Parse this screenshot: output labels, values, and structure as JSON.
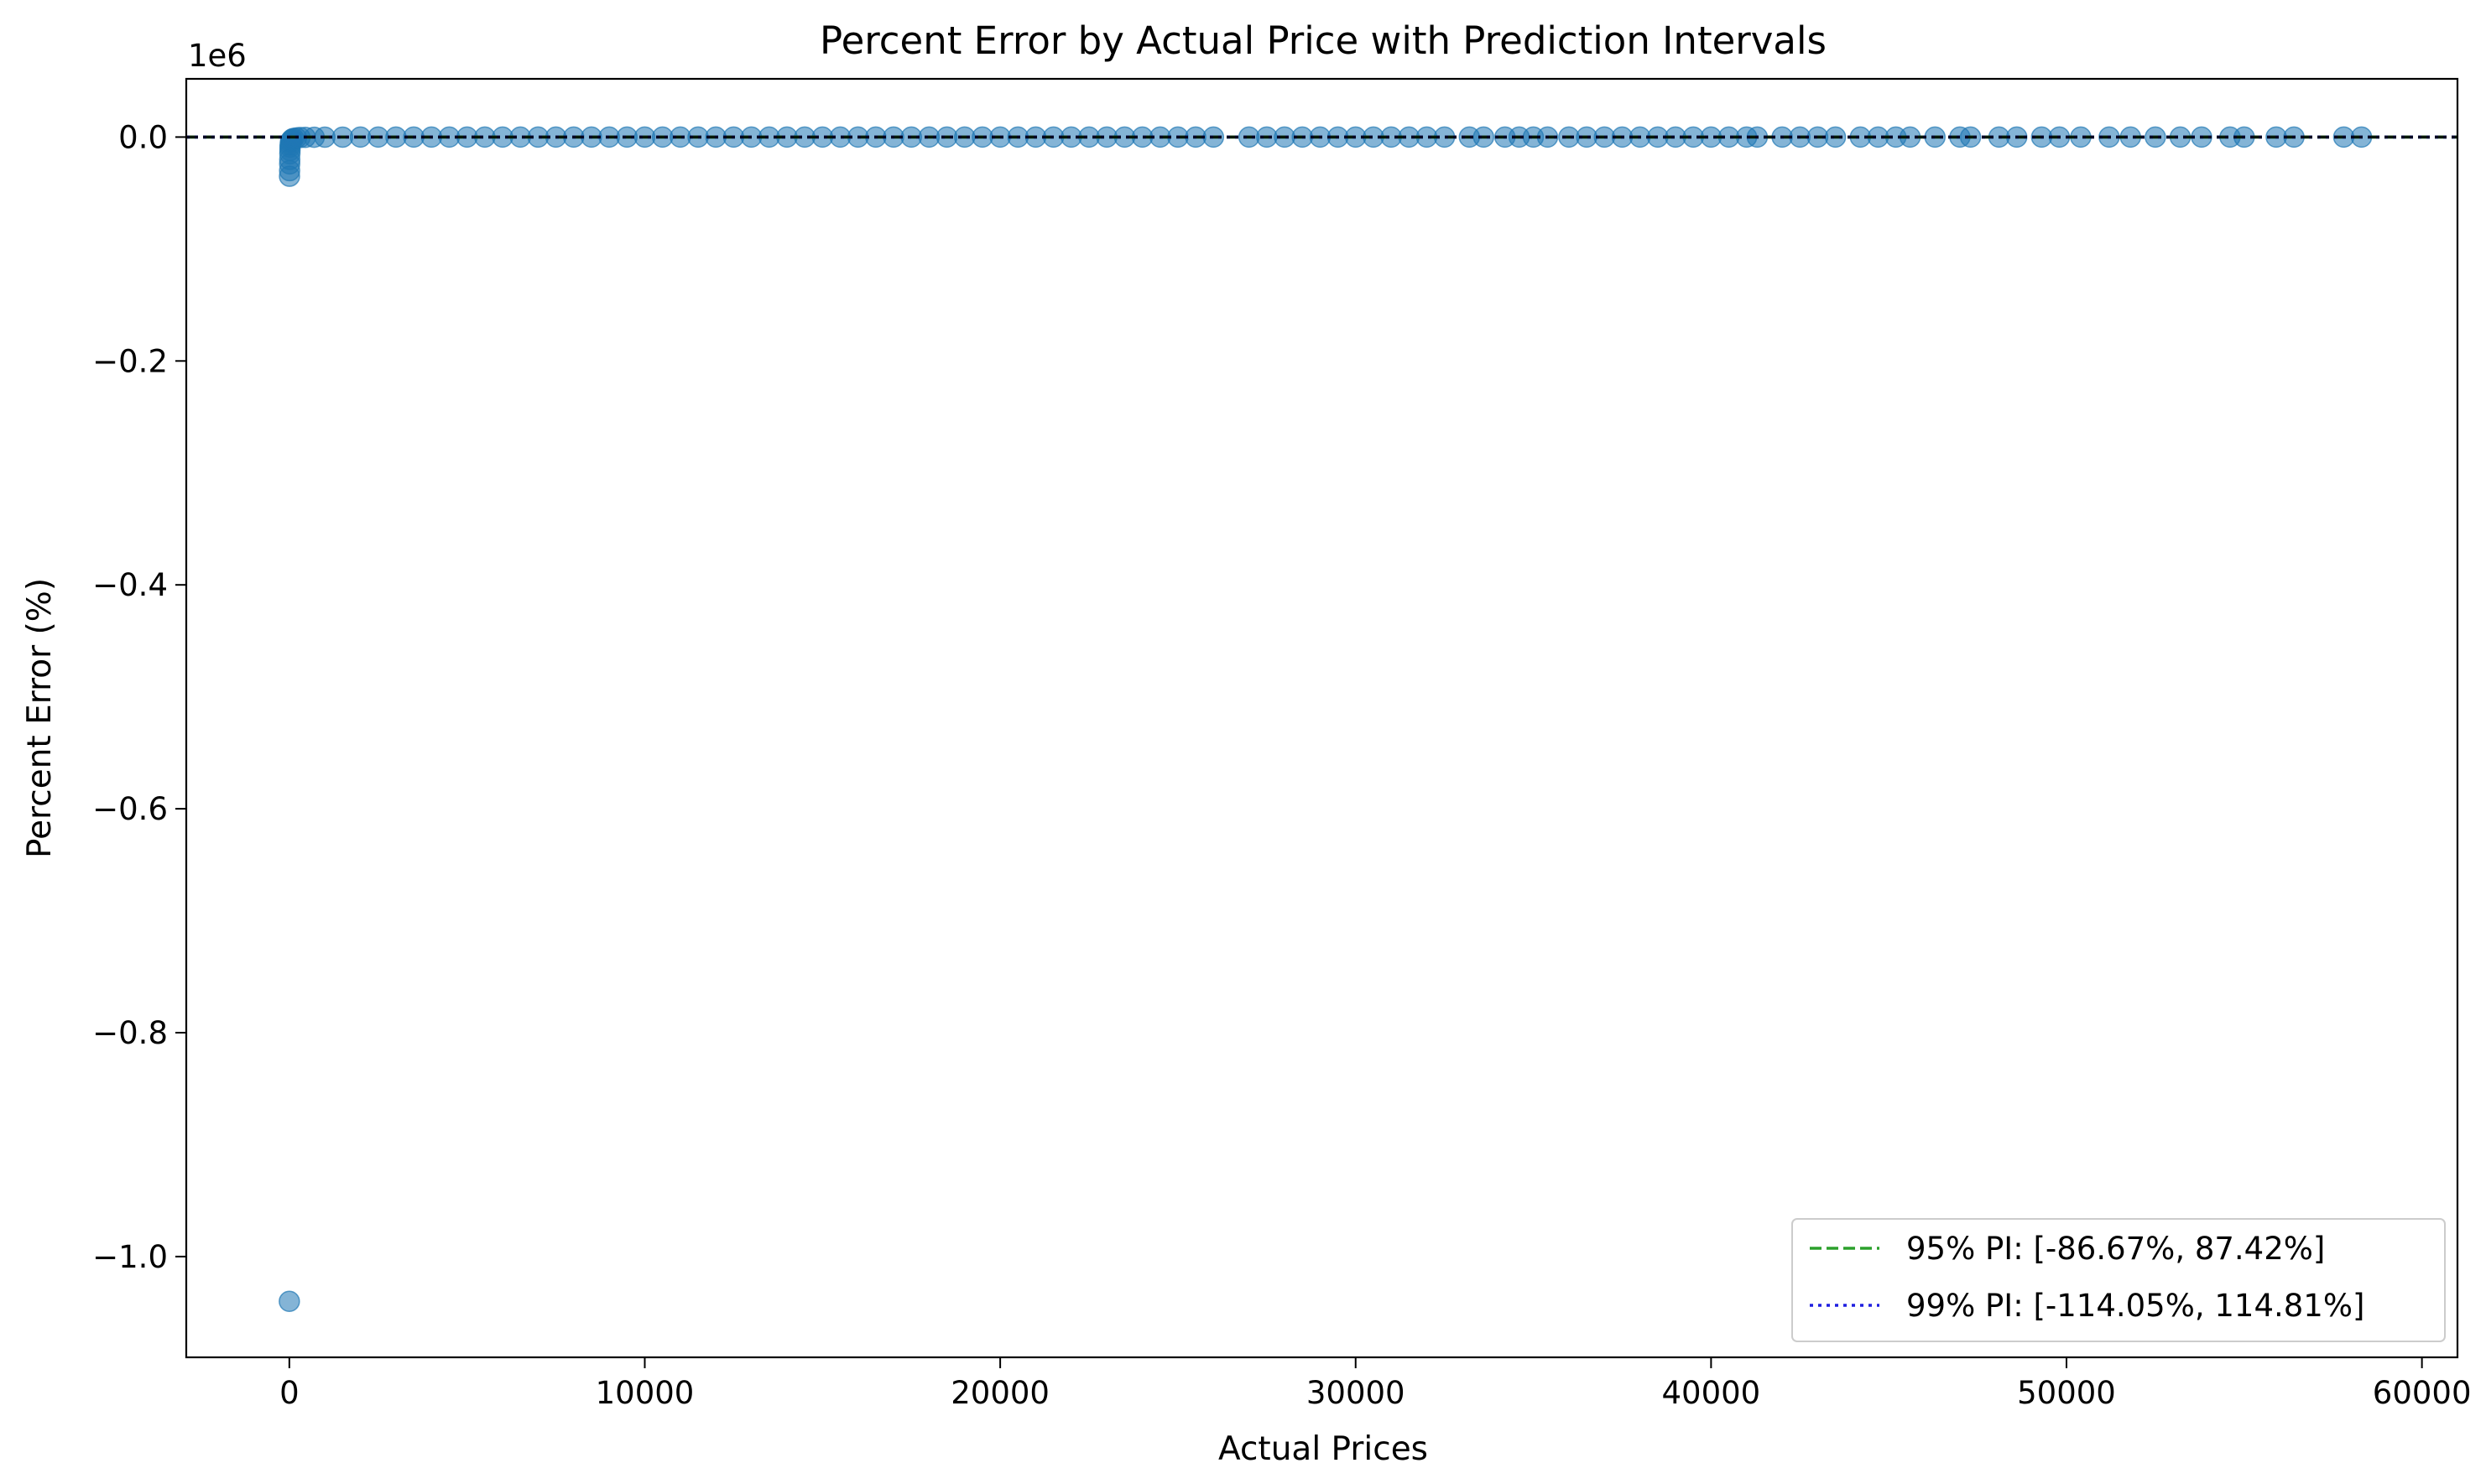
{
  "chart_data": {
    "type": "scatter",
    "title": "Percent Error by Actual Price with Prediction Intervals",
    "xlabel": "Actual Prices",
    "ylabel": "Percent Error (%)",
    "y_offset_label": "1e6",
    "xlim": [
      -2900,
      61000
    ],
    "ylim": [
      -1090000,
      52000
    ],
    "x_ticks": [
      0,
      10000,
      20000,
      30000,
      40000,
      50000,
      60000
    ],
    "x_tick_labels": [
      "0",
      "10000",
      "20000",
      "30000",
      "40000",
      "50000",
      "60000"
    ],
    "y_ticks": [
      0,
      -200000,
      -400000,
      -600000,
      -800000,
      -1000000
    ],
    "y_tick_labels": [
      "0.0",
      "−0.2",
      "−0.4",
      "−0.6",
      "−0.8",
      "−1.0"
    ],
    "grid": false,
    "legend_position": "lower-right",
    "point_color": "#1f77b4",
    "series": [
      {
        "kind": "points",
        "points": [
          [
            0,
            -1040000
          ],
          [
            5,
            -35000
          ],
          [
            8,
            -30000
          ],
          [
            10,
            -24000
          ],
          [
            12,
            -20000
          ],
          [
            15,
            -15000
          ],
          [
            18,
            -12000
          ],
          [
            20,
            -9000
          ],
          [
            25,
            -7000
          ],
          [
            30,
            -5000
          ],
          [
            40,
            -3500
          ],
          [
            60,
            -2500
          ],
          [
            80,
            -1800
          ],
          [
            120,
            -1200
          ],
          [
            200,
            -700
          ],
          [
            300,
            -400
          ],
          [
            450,
            -250
          ],
          [
            700,
            -150
          ],
          [
            1000,
            -90
          ],
          [
            1500,
            -50
          ],
          [
            2000,
            -5
          ],
          [
            2500,
            3
          ],
          [
            3000,
            -4
          ],
          [
            3500,
            2
          ],
          [
            4000,
            -6
          ],
          [
            4500,
            1
          ],
          [
            5000,
            4
          ],
          [
            5500,
            -2
          ],
          [
            6000,
            3
          ],
          [
            6500,
            -5
          ],
          [
            7000,
            2
          ],
          [
            7500,
            -1
          ],
          [
            8000,
            6
          ],
          [
            8500,
            -3
          ],
          [
            9000,
            1
          ],
          [
            9500,
            -4
          ],
          [
            10000,
            2
          ],
          [
            10500,
            5
          ],
          [
            11000,
            -2
          ],
          [
            11500,
            3
          ],
          [
            12000,
            -6
          ],
          [
            12500,
            1
          ],
          [
            13000,
            4
          ],
          [
            13500,
            -3
          ],
          [
            14000,
            2
          ],
          [
            14500,
            -1
          ],
          [
            15000,
            3
          ],
          [
            15500,
            -4
          ],
          [
            16000,
            5
          ],
          [
            16500,
            -2
          ],
          [
            17000,
            1
          ],
          [
            17500,
            3
          ],
          [
            18000,
            -5
          ],
          [
            18500,
            2
          ],
          [
            19000,
            -1
          ],
          [
            19500,
            4
          ],
          [
            20000,
            -3
          ],
          [
            20500,
            2
          ],
          [
            21000,
            5
          ],
          [
            21500,
            -4
          ],
          [
            22000,
            1
          ],
          [
            22500,
            -2
          ],
          [
            23000,
            3
          ],
          [
            23500,
            1
          ],
          [
            24000,
            -5
          ],
          [
            24500,
            2
          ],
          [
            25000,
            4
          ],
          [
            25500,
            -1
          ],
          [
            26000,
            3
          ],
          [
            27000,
            -2
          ],
          [
            27500,
            1
          ],
          [
            28000,
            4
          ],
          [
            28500,
            -3
          ],
          [
            29000,
            2
          ],
          [
            29500,
            -1
          ],
          [
            30000,
            3
          ],
          [
            30500,
            -4
          ],
          [
            31000,
            2
          ],
          [
            31500,
            1
          ],
          [
            32000,
            -3
          ],
          [
            32500,
            2
          ],
          [
            33200,
            -1
          ],
          [
            33600,
            4
          ],
          [
            34200,
            -2
          ],
          [
            34600,
            1
          ],
          [
            35000,
            3
          ],
          [
            35400,
            -4
          ],
          [
            36000,
            2
          ],
          [
            36500,
            -1
          ],
          [
            37000,
            3
          ],
          [
            37500,
            -2
          ],
          [
            38000,
            1
          ],
          [
            38500,
            4
          ],
          [
            39000,
            -3
          ],
          [
            39500,
            2
          ],
          [
            40000,
            -1
          ],
          [
            40500,
            3
          ],
          [
            41000,
            -2
          ],
          [
            41300,
            1
          ],
          [
            42000,
            4
          ],
          [
            42500,
            -3
          ],
          [
            43000,
            2
          ],
          [
            43500,
            -1
          ],
          [
            44200,
            3
          ],
          [
            44700,
            -2
          ],
          [
            45200,
            1
          ],
          [
            45600,
            2
          ],
          [
            46300,
            -1
          ],
          [
            47000,
            3
          ],
          [
            47300,
            -2
          ],
          [
            48100,
            1
          ],
          [
            48600,
            2
          ],
          [
            49300,
            -3
          ],
          [
            49800,
            1
          ],
          [
            50400,
            2
          ],
          [
            51200,
            -1
          ],
          [
            51800,
            3
          ],
          [
            52500,
            -2
          ],
          [
            53200,
            1
          ],
          [
            53800,
            2
          ],
          [
            54600,
            -1
          ],
          [
            55000,
            2
          ],
          [
            55900,
            1
          ],
          [
            56400,
            -2
          ],
          [
            57800,
            1
          ],
          [
            58300,
            2
          ]
        ]
      },
      {
        "name": "95% PI: [-86.67%, 87.42%]",
        "kind": "hline",
        "values": [
          -86.67,
          87.42
        ],
        "color": "#2ca02c",
        "style": "dashed"
      },
      {
        "name": "99% PI: [-114.05%, 114.81%]",
        "kind": "hline",
        "values": [
          -114.05,
          114.81
        ],
        "color": "#1f1fe0",
        "style": "dotted"
      },
      {
        "kind": "hline",
        "values": [
          0
        ],
        "color": "#000000",
        "style": "dashed"
      }
    ]
  }
}
